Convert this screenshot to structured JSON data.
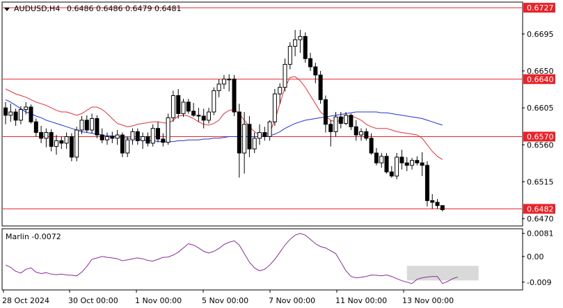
{
  "chart_data": [
    {
      "type": "candlestick",
      "title": "AUDUSD,H4",
      "ohlc_header": "0.6486 0.6486 0.6479 0.6481",
      "ylim": [
        0.6462,
        0.6733
      ],
      "price_ticks": [
        "0.6695",
        "0.6650",
        "0.6605",
        "0.6560",
        "0.6515",
        "0.6470"
      ],
      "level_labels": [
        "0.6727",
        "0.6640",
        "0.6570",
        "0.6482"
      ],
      "levels": [
        0.6727,
        0.664,
        0.657,
        0.6482
      ],
      "x_labels": [
        "28 Oct 2024",
        "30 Oct 00:00",
        "1 Nov 00:00",
        "5 Nov 00:00",
        "7 Nov 00:00",
        "11 Nov 00:00",
        "13 Nov 00:00"
      ],
      "candles": [
        [
          0.6605,
          0.6612,
          0.6585,
          0.6596
        ],
        [
          0.6596,
          0.661,
          0.6588,
          0.66
        ],
        [
          0.66,
          0.6604,
          0.6583,
          0.659
        ],
        [
          0.659,
          0.6607,
          0.6585,
          0.6603
        ],
        [
          0.6603,
          0.6612,
          0.6597,
          0.6606
        ],
        [
          0.6606,
          0.6609,
          0.6586,
          0.6588
        ],
        [
          0.6588,
          0.6592,
          0.657,
          0.6575
        ],
        [
          0.6575,
          0.6583,
          0.6562,
          0.6568
        ],
        [
          0.6568,
          0.658,
          0.6557,
          0.6575
        ],
        [
          0.6575,
          0.6579,
          0.6552,
          0.6558
        ],
        [
          0.6558,
          0.6572,
          0.6548,
          0.6565
        ],
        [
          0.6565,
          0.657,
          0.6555,
          0.6562
        ],
        [
          0.6562,
          0.6575,
          0.6555,
          0.657
        ],
        [
          0.657,
          0.6574,
          0.654,
          0.6545
        ],
        [
          0.6545,
          0.6582,
          0.654,
          0.6578
        ],
        [
          0.6578,
          0.6595,
          0.6573,
          0.659
        ],
        [
          0.659,
          0.6596,
          0.6575,
          0.6578
        ],
        [
          0.6578,
          0.6598,
          0.6574,
          0.6592
        ],
        [
          0.6592,
          0.6596,
          0.6568,
          0.6572
        ],
        [
          0.6572,
          0.658,
          0.6562,
          0.6566
        ],
        [
          0.6566,
          0.6575,
          0.656,
          0.657
        ],
        [
          0.657,
          0.6576,
          0.6562,
          0.6568
        ],
        [
          0.6568,
          0.6578,
          0.656,
          0.6572
        ],
        [
          0.6572,
          0.6575,
          0.6545,
          0.655
        ],
        [
          0.655,
          0.657,
          0.6545,
          0.6566
        ],
        [
          0.6566,
          0.658,
          0.656,
          0.6576
        ],
        [
          0.6576,
          0.658,
          0.656,
          0.6565
        ],
        [
          0.6565,
          0.6575,
          0.6555,
          0.657
        ],
        [
          0.657,
          0.6575,
          0.6558,
          0.6562
        ],
        [
          0.6562,
          0.6585,
          0.6558,
          0.658
        ],
        [
          0.658,
          0.6588,
          0.6563,
          0.6567
        ],
        [
          0.6567,
          0.6574,
          0.6558,
          0.6563
        ],
        [
          0.6563,
          0.6598,
          0.656,
          0.6593
        ],
        [
          0.6593,
          0.6626,
          0.6588,
          0.662
        ],
        [
          0.662,
          0.6628,
          0.6592,
          0.6598
        ],
        [
          0.6598,
          0.6616,
          0.6594,
          0.6612
        ],
        [
          0.6612,
          0.6616,
          0.6598,
          0.6601
        ],
        [
          0.6601,
          0.6611,
          0.6594,
          0.6596
        ],
        [
          0.6596,
          0.6605,
          0.6588,
          0.6595
        ],
        [
          0.6595,
          0.6604,
          0.658,
          0.659
        ],
        [
          0.659,
          0.6605,
          0.6586,
          0.66
        ],
        [
          0.66,
          0.663,
          0.6596,
          0.6626
        ],
        [
          0.6626,
          0.664,
          0.6618,
          0.6634
        ],
        [
          0.6634,
          0.6645,
          0.6628,
          0.664
        ],
        [
          0.664,
          0.6646,
          0.6625,
          0.664
        ],
        [
          0.664,
          0.6645,
          0.6595,
          0.66
        ],
        [
          0.66,
          0.661,
          0.652,
          0.655
        ],
        [
          0.655,
          0.66,
          0.6525,
          0.6585
        ],
        [
          0.6585,
          0.6595,
          0.6545,
          0.6555
        ],
        [
          0.6555,
          0.6575,
          0.655,
          0.6568
        ],
        [
          0.6568,
          0.6585,
          0.656,
          0.6575
        ],
        [
          0.6575,
          0.6582,
          0.6565,
          0.657
        ],
        [
          0.657,
          0.659,
          0.6565,
          0.6588
        ],
        [
          0.6588,
          0.6628,
          0.6583,
          0.6622
        ],
        [
          0.6622,
          0.6635,
          0.661,
          0.663
        ],
        [
          0.663,
          0.6665,
          0.6625,
          0.6658
        ],
        [
          0.6658,
          0.6685,
          0.6652,
          0.668
        ],
        [
          0.668,
          0.67,
          0.6668,
          0.6688
        ],
        [
          0.6688,
          0.67,
          0.6672,
          0.6692
        ],
        [
          0.6692,
          0.6697,
          0.666,
          0.6665
        ],
        [
          0.6665,
          0.6672,
          0.665,
          0.6655
        ],
        [
          0.6655,
          0.666,
          0.6635,
          0.6645
        ],
        [
          0.6645,
          0.665,
          0.661,
          0.6615
        ],
        [
          0.6615,
          0.662,
          0.6575,
          0.6585
        ],
        [
          0.6585,
          0.659,
          0.6558,
          0.6576
        ],
        [
          0.6576,
          0.66,
          0.657,
          0.6594
        ],
        [
          0.6594,
          0.66,
          0.658,
          0.6586
        ],
        [
          0.6586,
          0.66,
          0.6584,
          0.6596
        ],
        [
          0.6596,
          0.6598,
          0.6578,
          0.6582
        ],
        [
          0.6582,
          0.659,
          0.6565,
          0.6572
        ],
        [
          0.6572,
          0.658,
          0.6565,
          0.6576
        ],
        [
          0.6576,
          0.658,
          0.6565,
          0.6568
        ],
        [
          0.6568,
          0.6574,
          0.6548,
          0.655
        ],
        [
          0.655,
          0.6556,
          0.6535,
          0.6538
        ],
        [
          0.6538,
          0.655,
          0.6532,
          0.6546
        ],
        [
          0.6546,
          0.655,
          0.6525,
          0.6527
        ],
        [
          0.6527,
          0.6534,
          0.652,
          0.6522
        ],
        [
          0.6522,
          0.655,
          0.6518,
          0.6545
        ],
        [
          0.6545,
          0.6554,
          0.653,
          0.6538
        ],
        [
          0.6538,
          0.6545,
          0.6528,
          0.6535
        ],
        [
          0.6535,
          0.6544,
          0.653,
          0.6541
        ],
        [
          0.6541,
          0.6546,
          0.6535,
          0.6538
        ],
        [
          0.6538,
          0.6551,
          0.6522,
          0.6535
        ],
        [
          0.6535,
          0.654,
          0.6485,
          0.6492
        ],
        [
          0.6492,
          0.65,
          0.6482,
          0.649
        ],
        [
          0.649,
          0.6494,
          0.6482,
          0.6486
        ],
        [
          0.6486,
          0.6486,
          0.6479,
          0.6481
        ]
      ],
      "series": [
        {
          "values": [
            0.6628,
            0.6625,
            0.6622,
            0.662,
            0.6618,
            0.6615,
            0.6612,
            0.661,
            0.6608,
            0.6605,
            0.6602,
            0.66,
            0.66,
            0.6598,
            0.6596,
            0.6598,
            0.6602,
            0.6606,
            0.6606,
            0.6603,
            0.6598,
            0.6592,
            0.6586,
            0.6584,
            0.6582,
            0.6583,
            0.6585,
            0.6586,
            0.6587,
            0.6588,
            0.6588,
            0.6587,
            0.6586,
            0.659,
            0.6595,
            0.6596,
            0.6595,
            0.6592,
            0.6588,
            0.6585,
            0.6584,
            0.6586,
            0.659,
            0.6598,
            0.6602,
            0.6603,
            0.6598,
            0.659,
            0.6582,
            0.6576,
            0.6572,
            0.6572,
            0.6575,
            0.659,
            0.661,
            0.663,
            0.6642,
            0.6643,
            0.6638,
            0.663,
            0.662,
            0.661,
            0.66,
            0.6595,
            0.659,
            0.6588,
            0.659,
            0.6595,
            0.6595,
            0.6593,
            0.659,
            0.6585,
            0.6582,
            0.658,
            0.658,
            0.658,
            0.6578,
            0.6576,
            0.6575,
            0.6574,
            0.6573,
            0.6572,
            0.6568,
            0.656,
            0.6552,
            0.6546,
            0.6542
          ]
        },
        {
          "values": [
            0.6615,
            0.6612,
            0.6608,
            0.6604,
            0.66,
            0.6598,
            0.6595,
            0.6593,
            0.659,
            0.6588,
            0.6586,
            0.6584,
            0.6582,
            0.658,
            0.6578,
            0.6576,
            0.6575,
            0.6574,
            0.6573,
            0.6572,
            0.6571,
            0.6571,
            0.657,
            0.6569,
            0.6568,
            0.6568,
            0.6567,
            0.6566,
            0.6565,
            0.6565,
            0.6564,
            0.6564,
            0.6564,
            0.6564,
            0.6565,
            0.6565,
            0.6566,
            0.6566,
            0.6566,
            0.6567,
            0.6567,
            0.6568,
            0.6568,
            0.6569,
            0.657,
            0.657,
            0.657,
            0.657,
            0.657,
            0.657,
            0.657,
            0.657,
            0.6571,
            0.6573,
            0.6576,
            0.658,
            0.6583,
            0.6586,
            0.6588,
            0.659,
            0.6591,
            0.6592,
            0.6593,
            0.6594,
            0.6595,
            0.6596,
            0.6597,
            0.6598,
            0.6599,
            0.66,
            0.66,
            0.66,
            0.66,
            0.66,
            0.6599,
            0.6599,
            0.6598,
            0.6597,
            0.6596,
            0.6595,
            0.6594,
            0.6593,
            0.6592,
            0.659,
            0.6588,
            0.6586,
            0.6584
          ]
        }
      ]
    },
    {
      "type": "line",
      "title": "Marlin -0.0072",
      "ylim": [
        -0.0115,
        0.0095
      ],
      "ticks": [
        "0.0081",
        "0.00",
        "-0.009"
      ],
      "series": [
        {
          "values": [
            -0.003,
            -0.0038,
            -0.0052,
            -0.0058,
            -0.0045,
            -0.004,
            -0.0055,
            -0.006,
            -0.0057,
            -0.0062,
            -0.0064,
            -0.0062,
            -0.0065,
            -0.0066,
            -0.0068,
            -0.0055,
            -0.0035,
            -0.001,
            -0.0005,
            0.0,
            -0.0003,
            -0.0005,
            -0.0008,
            -0.0015,
            -0.0012,
            -0.0008,
            -0.0005,
            -0.0008,
            -0.0014,
            -0.0016,
            -0.001,
            -0.0003,
            -0.0002,
            0.0005,
            0.0015,
            0.003,
            0.0045,
            0.004,
            0.003,
            0.0018,
            0.0012,
            0.0018,
            0.0028,
            0.0042,
            0.005,
            0.0055,
            0.004,
            0.001,
            -0.002,
            -0.004,
            -0.005,
            -0.0045,
            -0.003,
            -0.001,
            0.0015,
            0.004,
            0.006,
            0.0075,
            0.0081,
            0.0075,
            0.006,
            0.0045,
            0.0035,
            0.003,
            0.002,
            0.001,
            -0.002,
            -0.005,
            -0.007,
            -0.0075,
            -0.0073,
            -0.007,
            -0.0065,
            -0.0066,
            -0.0068,
            -0.0065,
            -0.007,
            -0.0078,
            -0.0085,
            -0.009,
            -0.0095,
            -0.008,
            -0.0075,
            -0.0072,
            -0.007,
            -0.007,
            -0.0095,
            -0.0088,
            -0.0078,
            -0.0072
          ]
        }
      ]
    }
  ],
  "colors": {
    "background": "#ffffff",
    "candle": "#000000",
    "level_line": "#e8232a",
    "ma_fast": "#e0303a",
    "ma_slow": "#2030d0",
    "oscillator": "#8a2a9a",
    "highlight_box": "#d0d0d0",
    "label_bg": "#e8232a",
    "label_text": "#ffffff"
  }
}
